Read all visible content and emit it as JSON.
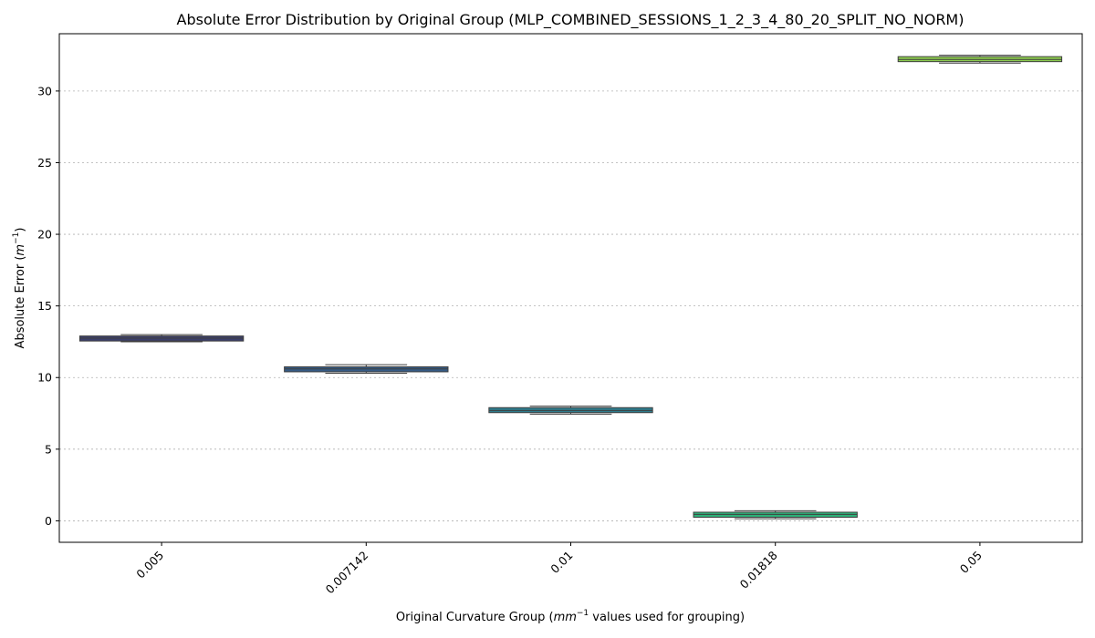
{
  "chart_data": {
    "type": "box",
    "title": "Absolute Error Distribution by Original Group (MLP_COMBINED_SESSIONS_1_2_3_4_80_20_SPLIT_NO_NORM)",
    "xlabel_parts": [
      "Original Curvature Group (",
      "mm",
      "−1",
      " values used for grouping)"
    ],
    "ylabel_parts": [
      "Absolute Error (",
      "m",
      "−1",
      ")"
    ],
    "categories": [
      "0.005",
      "0.007142",
      "0.01",
      "0.01818",
      "0.05"
    ],
    "ylim": [
      -1.5,
      34.0
    ],
    "yticks": [
      "0",
      "5",
      "10",
      "15",
      "20",
      "25",
      "30"
    ],
    "grid": "y",
    "boxes": [
      {
        "category": "0.005",
        "whislo": 12.5,
        "q1": 12.55,
        "med": 12.75,
        "q3": 12.9,
        "whishi": 13.0,
        "color": "#3b3f6b"
      },
      {
        "category": "0.007142",
        "whislo": 10.3,
        "q1": 10.4,
        "med": 10.6,
        "q3": 10.75,
        "whishi": 10.9,
        "color": "#365b86"
      },
      {
        "category": "0.01",
        "whislo": 7.45,
        "q1": 7.55,
        "med": 7.7,
        "q3": 7.9,
        "whishi": 8.0,
        "color": "#2e7b8c"
      },
      {
        "category": "0.01818",
        "whislo": 0.15,
        "q1": 0.25,
        "med": 0.45,
        "q3": 0.6,
        "whishi": 0.7,
        "color": "#2fb27a"
      },
      {
        "category": "0.05",
        "whislo": 31.95,
        "q1": 32.05,
        "med": 32.2,
        "q3": 32.4,
        "whishi": 32.5,
        "color": "#8dcc4f"
      }
    ]
  }
}
